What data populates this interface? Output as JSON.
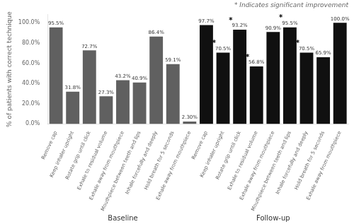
{
  "chart_data": {
    "type": "bar",
    "categories": [
      "Remove cap",
      "Keep inhaler upright",
      "Rotate grip until click",
      "Exhale to residual volume",
      "Exhale away from mouthpiece",
      "Mouthpiece between teeth and lips",
      "Inhale forcefully and deeply",
      "Hold breath for 5 seconds",
      "Exhale away from mouthpiece",
      "Remove cap",
      "Keep inhaler upright",
      "Rotate grip until click",
      "Exhale to residual volume",
      "Exhale away from mouthpiece",
      "Mouthpiece between teeth and lips",
      "Inhale forcefully and deeply",
      "Hold breath for 5 seconds",
      "Exhale away from mouthpiece"
    ],
    "series": [
      {
        "name": "Baseline",
        "color": "#606060",
        "values": [
          95.5,
          31.8,
          72.7,
          27.3,
          43.2,
          40.9,
          86.4,
          59.1,
          2.3,
          null,
          null,
          null,
          null,
          null,
          null,
          null,
          null,
          null
        ],
        "value_labels": [
          "95.5%",
          "31.8%",
          "72.7%",
          "27.3%",
          "43.2%",
          "40.9%",
          "86.4%",
          "59.1%",
          "2.30%",
          null,
          null,
          null,
          null,
          null,
          null,
          null,
          null,
          null
        ]
      },
      {
        "name": "Follow-up",
        "color": "#101010",
        "values": [
          null,
          null,
          null,
          null,
          null,
          null,
          null,
          null,
          null,
          97.7,
          70.5,
          93.2,
          56.8,
          90.9,
          95.5,
          70.5,
          65.9,
          100.0
        ],
        "value_labels": [
          null,
          null,
          null,
          null,
          null,
          null,
          null,
          null,
          null,
          "97.7%",
          "70.5%",
          "93.2%",
          "56.8%",
          "90.9%",
          "95.5%",
          "70.5%",
          "65.9%",
          "100.0%"
        ],
        "significant": [
          false,
          false,
          false,
          false,
          false,
          false,
          false,
          false,
          false,
          false,
          true,
          true,
          true,
          false,
          true,
          true,
          false,
          false
        ]
      }
    ],
    "ylabel": "% of patients with correct technique",
    "ylim": [
      0,
      108
    ],
    "yticks": [
      {
        "value": 0,
        "label": "0.0%"
      },
      {
        "value": 20,
        "label": "20.0%"
      },
      {
        "value": 40,
        "label": "40.0%"
      },
      {
        "value": 60,
        "label": "60.0%"
      },
      {
        "value": 80,
        "label": "80.0%"
      },
      {
        "value": 100,
        "label": "100.0%"
      }
    ],
    "grid": false,
    "data_labels": true,
    "annotation": "* Indicates significant improvement",
    "significance_label": "*"
  }
}
